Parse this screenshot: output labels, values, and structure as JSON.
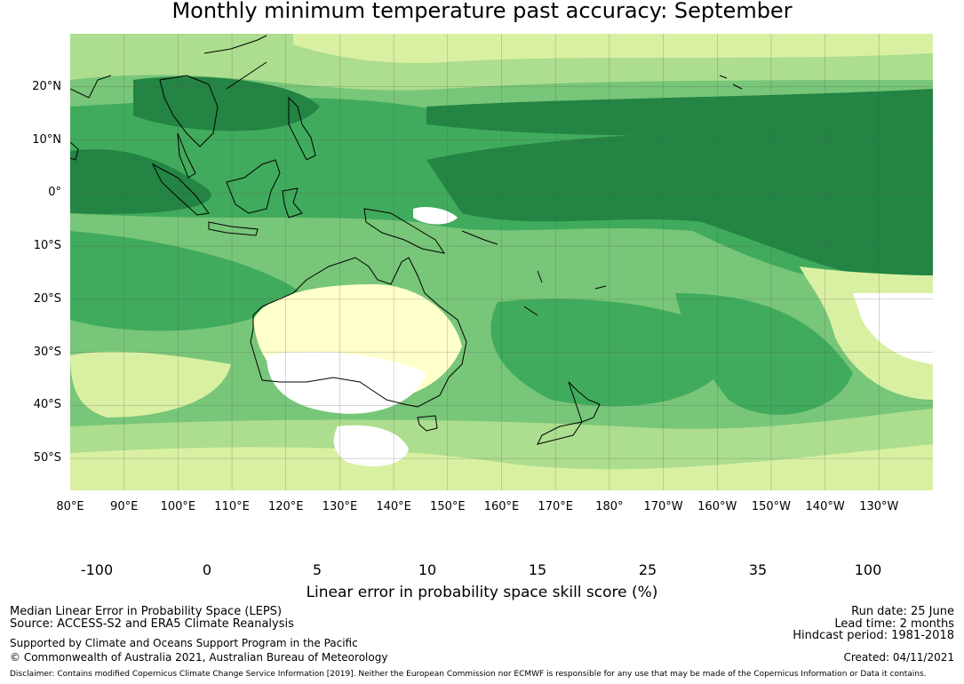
{
  "title": "Monthly minimum temperature past accuracy: September",
  "map": {
    "lat_labels": [
      "20°N",
      "10°N",
      "0°",
      "10°S",
      "20°S",
      "30°S",
      "40°S",
      "50°S"
    ],
    "lon_labels": [
      "80°E",
      "90°E",
      "100°E",
      "110°E",
      "120°E",
      "130°E",
      "140°E",
      "150°E",
      "160°E",
      "170°E",
      "180°",
      "170°W",
      "160°W",
      "150°W",
      "140°W",
      "130°W"
    ],
    "extent": {
      "lon_min": 80,
      "lon_max": 240,
      "lat_min": -56,
      "lat_max": 30
    },
    "gridlines": true
  },
  "colorbar": {
    "ticks": [
      "-100",
      "0",
      "5",
      "10",
      "15",
      "25",
      "35",
      "100"
    ],
    "colors": [
      "#ffffff",
      "#ffffcc",
      "#d9f0a3",
      "#addd8e",
      "#78c679",
      "#41ab5d",
      "#238443"
    ],
    "label": "Linear error in probability space skill score (%)"
  },
  "footer": {
    "left_line1": "Median Linear Error in Probability Space (LEPS)",
    "left_line2": "Source: ACCESS-S2 and ERA5 Climate Reanalysis",
    "left_line3": "Supported by Climate and Oceans Support Program in the Pacific",
    "left_line4": "© Commonwealth of Australia 2021, Australian Bureau of Meteorology",
    "right_line1": "Run date: 25 June",
    "right_line2": "Lead time: 2 months",
    "right_line3": "Hindcast period: 1981-2018",
    "right_line4": "Created: 04/11/2021",
    "disclaimer": "Disclaimer: Contains modified Copernicus Climate Change Service Information [2019]. Neither the European Commission nor ECMWF is responsible for any use that may be made of the Copernicus Information or Data it contains."
  }
}
